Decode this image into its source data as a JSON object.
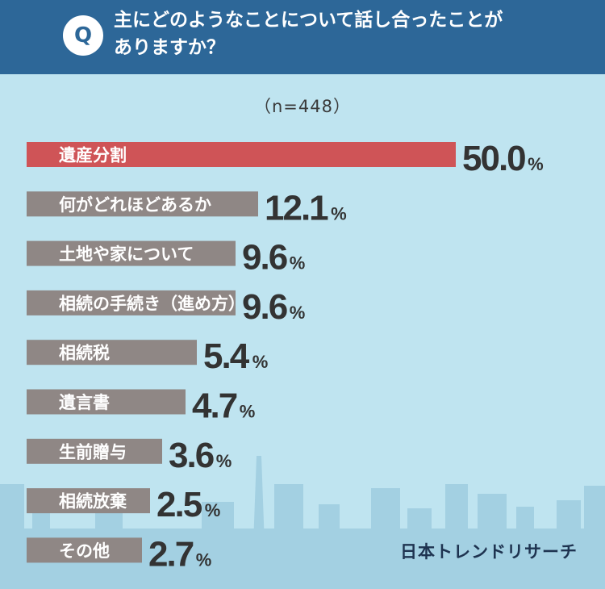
{
  "header": {
    "badge": "Q",
    "question": "主にどのようなことについて話し合ったことが\nありますか？"
  },
  "sample_size": "（n=448）",
  "brand": "日本トレンドリサーチ",
  "colors": {
    "header_bg": "#2d6798",
    "background": "#bfe4f0",
    "highlight_bar": "#cf5457",
    "bar": "#8f8785",
    "city": "#a3d0e2"
  },
  "chart_data": {
    "type": "bar",
    "orientation": "horizontal",
    "title": "主にどのようなことについて話し合ったことがありますか？",
    "unit": "%",
    "categories": [
      "遺産分割",
      "何がどれほどあるか",
      "土地や家について",
      "相続の手続き（進め方）",
      "相続税",
      "遺言書",
      "生前贈与",
      "相続放棄",
      "その他"
    ],
    "values": [
      50.0,
      12.1,
      9.6,
      9.6,
      5.4,
      4.7,
      3.6,
      2.5,
      2.7
    ],
    "value_labels": [
      "50.0",
      "12.1",
      "9.6",
      "9.6",
      "5.4",
      "4.7",
      "3.6",
      "2.5",
      "2.7"
    ],
    "highlight_index": 0
  }
}
